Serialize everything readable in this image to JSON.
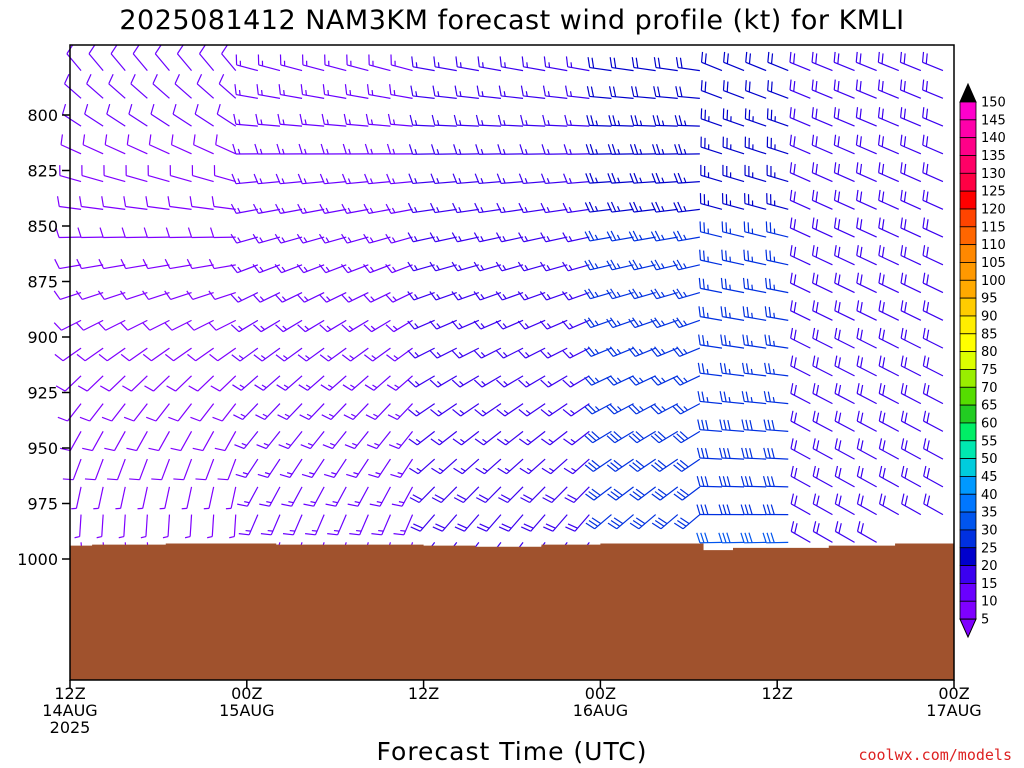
{
  "chart_data": {
    "type": "wind-barb-profile",
    "title": "2025081412 NAM3KM forecast wind profile (kt) for KMLI",
    "xlabel": "Forecast Time (UTC)",
    "ylabel": "",
    "units": "kt",
    "credit": "coolwx.com/models",
    "x_ticks": [
      {
        "hour": 0,
        "line1": "12Z",
        "line2": "14AUG",
        "line3": "2025"
      },
      {
        "hour": 12,
        "line1": "00Z",
        "line2": "15AUG",
        "line3": ""
      },
      {
        "hour": 24,
        "line1": "12Z",
        "line2": "",
        "line3": ""
      },
      {
        "hour": 36,
        "line1": "00Z",
        "line2": "16AUG",
        "line3": ""
      },
      {
        "hour": 48,
        "line1": "12Z",
        "line2": "",
        "line3": ""
      },
      {
        "hour": 60,
        "line1": "00Z",
        "line2": "17AUG",
        "line3": ""
      }
    ],
    "x_range_hours": [
      0,
      60
    ],
    "y_ticks": [
      "800",
      "825",
      "850",
      "875",
      "900",
      "925",
      "950",
      "975",
      "1000"
    ],
    "y_range_mb": [
      778,
      1002
    ],
    "y_direction": "pressure decreasing upward",
    "surface_pressure_profile": [
      {
        "hour": 0,
        "p": 994.0
      },
      {
        "hour": 1.5,
        "p": 993.5
      },
      {
        "hour": 4,
        "p": 993.5
      },
      {
        "hour": 6.5,
        "p": 993.0
      },
      {
        "hour": 14,
        "p": 993.5
      },
      {
        "hour": 24,
        "p": 994.0
      },
      {
        "hour": 27.5,
        "p": 994.5
      },
      {
        "hour": 32,
        "p": 993.5
      },
      {
        "hour": 36,
        "p": 993.0
      },
      {
        "hour": 41.5,
        "p": 993.0
      },
      {
        "hour": 43,
        "p": 996.0
      },
      {
        "hour": 45,
        "p": 995.0
      },
      {
        "hour": 51.5,
        "p": 994.0
      },
      {
        "hour": 56,
        "p": 993.0
      },
      {
        "hour": 60,
        "p": 992.5
      }
    ],
    "terrain_color": "#a0522d",
    "colorbar": {
      "labels": [
        "5",
        "10",
        "15",
        "20",
        "25",
        "30",
        "35",
        "40",
        "45",
        "50",
        "55",
        "60",
        "65",
        "70",
        "75",
        "80",
        "85",
        "90",
        "95",
        "100",
        "105",
        "110",
        "115",
        "120",
        "125",
        "130",
        "135",
        "140",
        "145",
        "150"
      ],
      "colors": [
        "#7f00ff",
        "#6a00ff",
        "#3b00f0",
        "#0000cc",
        "#0030e0",
        "#0055ee",
        "#0077ff",
        "#0099ff",
        "#00ccdd",
        "#00e8b0",
        "#00ee66",
        "#22cc22",
        "#55dd00",
        "#99ee00",
        "#ddff00",
        "#ffff00",
        "#ffee00",
        "#ffcc00",
        "#ffaa00",
        "#ff9900",
        "#ff8800",
        "#ff6600",
        "#ff4400",
        "#ff0000",
        "#ff0044",
        "#ff0066",
        "#ff0088",
        "#ff00aa",
        "#ff00cc",
        "#ff00ff"
      ]
    },
    "barb_grid": {
      "hour_step": 1.5,
      "levels_mb": [
        780,
        792.5,
        805,
        817.5,
        830,
        842.5,
        855,
        867.5,
        880,
        892.5,
        905,
        917.5,
        930,
        942.5,
        955,
        967.5,
        980,
        992.5
      ]
    },
    "barb_periods": [
      {
        "from_hour": 0,
        "to_hour": 12,
        "low_dir": 170,
        "high_dir": 320,
        "low_speed": 7,
        "high_speed": 10
      },
      {
        "from_hour": 12,
        "to_hour": 24,
        "low_dir": 195,
        "high_dir": 285,
        "low_speed": 14,
        "high_speed": 13
      },
      {
        "from_hour": 24,
        "to_hour": 36,
        "low_dir": 215,
        "high_dir": 280,
        "low_speed": 18,
        "high_speed": 15
      },
      {
        "from_hour": 36,
        "to_hour": 43,
        "low_dir": 225,
        "high_dir": 278,
        "low_speed": 30,
        "high_speed": 22
      },
      {
        "from_hour": 43,
        "to_hour": 50,
        "low_dir": 268,
        "high_dir": 292,
        "low_speed": 30,
        "high_speed": 22
      },
      {
        "from_hour": 50,
        "to_hour": 60,
        "low_dir": 300,
        "high_dir": 292,
        "low_speed": 18,
        "high_speed": 18
      }
    ]
  }
}
